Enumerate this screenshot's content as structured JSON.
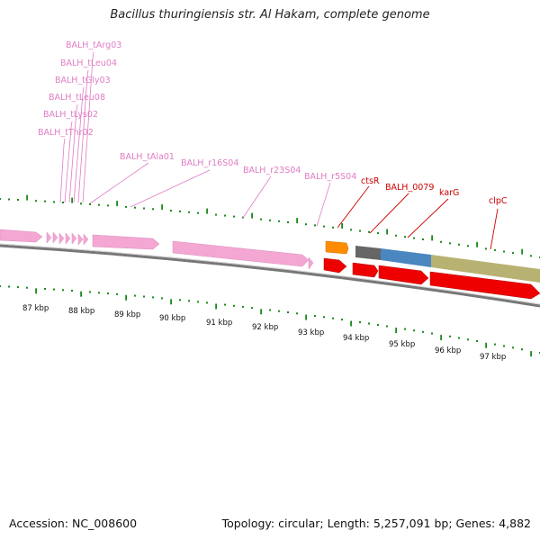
{
  "title": "Bacillus thuringiensis str. Al Hakam, complete genome",
  "footer": {
    "accession": "Accession: NC_008600",
    "summary": "Topology: circular; Length: 5,257,091 bp; Genes: 4,882"
  },
  "colors": {
    "trna_rrna": "#f4a7d3",
    "cds": "#ee0000",
    "ncrna": "#ff8c00",
    "gene_grey": "#666666",
    "gene_blue": "#4a86c0",
    "gene_olive": "#b8b272",
    "tick": "#1a8a1a",
    "backbone": "#777777",
    "pink_label": "#e07cc4",
    "red_label": "#cc0000"
  },
  "kbp_labels": [
    "87 kbp",
    "88 kbp",
    "89 kbp",
    "90 kbp",
    "91 kbp",
    "92 kbp",
    "93 kbp",
    "94 kbp",
    "95 kbp",
    "96 kbp",
    "97 kbp"
  ],
  "pink_features": [
    "BALH_tArg03",
    "BALH_tLeu04",
    "BALH_tGly03",
    "BALH_tLeu08",
    "BALH_tLys02",
    "BALH_tThr02",
    "BALH_tAla01",
    "BALH_r16S04",
    "BALH_r23S04",
    "BALH_r5S04"
  ],
  "red_features": [
    "ctsR",
    "BALH_0079",
    "karG",
    "clpC"
  ]
}
